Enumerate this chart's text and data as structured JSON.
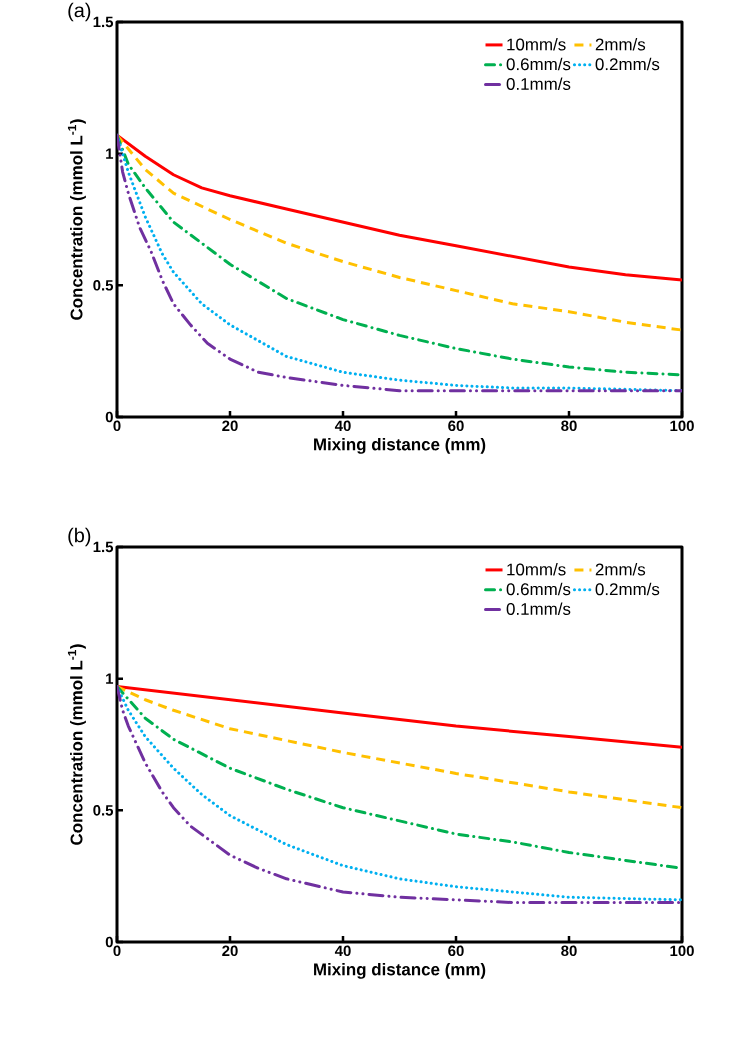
{
  "chart_data": [
    {
      "type": "line",
      "title": "(a)",
      "xlabel": "Mixing distance (mm)",
      "ylabel": "Concentration (mmol L$^{-1}$)",
      "xlim": [
        0,
        100
      ],
      "ylim": [
        0,
        1.5
      ],
      "xticks": [
        0,
        20,
        40,
        60,
        80,
        100
      ],
      "yticks": [
        0,
        0.5,
        1,
        1.5
      ],
      "grid": false,
      "legend": "top right",
      "marker": "none",
      "series": [
        {
          "name": "10mm/s",
          "color": "#ff0000",
          "line_style": "solid",
          "x": [
            0,
            5,
            10,
            15,
            20,
            30,
            40,
            50,
            60,
            70,
            80,
            90,
            100
          ],
          "values": [
            1.07,
            0.99,
            0.92,
            0.87,
            0.84,
            0.79,
            0.74,
            0.69,
            0.65,
            0.61,
            0.57,
            0.54,
            0.52
          ]
        },
        {
          "name": "2mm/s",
          "color": "#ffc000",
          "line_style": "dashed",
          "x": [
            0,
            5,
            10,
            20,
            30,
            40,
            50,
            60,
            70,
            80,
            90,
            100
          ],
          "values": [
            1.07,
            0.94,
            0.85,
            0.75,
            0.66,
            0.59,
            0.53,
            0.48,
            0.43,
            0.4,
            0.36,
            0.33
          ]
        },
        {
          "name": "0.6mm/s",
          "color": "#00b050",
          "line_style": "dashdot",
          "x": [
            0,
            2,
            5,
            10,
            20,
            30,
            40,
            50,
            60,
            70,
            80,
            90,
            100
          ],
          "values": [
            1.07,
            0.96,
            0.87,
            0.74,
            0.58,
            0.45,
            0.37,
            0.31,
            0.26,
            0.22,
            0.19,
            0.17,
            0.16
          ]
        },
        {
          "name": "0.2mm/s",
          "color": "#00b0f0",
          "line_style": "dotted",
          "x": [
            0,
            2,
            5,
            8,
            10,
            15,
            20,
            30,
            40,
            50,
            60,
            70,
            80,
            100
          ],
          "values": [
            1.07,
            0.93,
            0.76,
            0.62,
            0.55,
            0.43,
            0.35,
            0.23,
            0.17,
            0.14,
            0.12,
            0.11,
            0.11,
            0.1
          ]
        },
        {
          "name": "0.1mm/s",
          "color": "#7030a0",
          "line_style": "dashdotdot",
          "x": [
            0,
            1,
            2,
            4,
            6,
            8,
            10,
            13,
            16,
            20,
            25,
            30,
            40,
            50,
            60,
            80,
            100
          ],
          "values": [
            1.07,
            0.93,
            0.85,
            0.72,
            0.63,
            0.52,
            0.43,
            0.35,
            0.28,
            0.22,
            0.17,
            0.15,
            0.12,
            0.1,
            0.1,
            0.1,
            0.1
          ]
        }
      ]
    },
    {
      "type": "line",
      "title": "(b)",
      "xlabel": "Mixing distance (mm)",
      "ylabel": "Concentration (mmol L$^{-1}$)",
      "xlim": [
        0,
        100
      ],
      "ylim": [
        0,
        1.5
      ],
      "xticks": [
        0,
        20,
        40,
        60,
        80,
        100
      ],
      "yticks": [
        0,
        0.5,
        1,
        1.5
      ],
      "grid": false,
      "legend": "top right",
      "marker": "none",
      "series": [
        {
          "name": "10mm/s",
          "color": "#ff0000",
          "line_style": "solid",
          "x": [
            0,
            20,
            40,
            60,
            80,
            100
          ],
          "values": [
            0.97,
            0.92,
            0.87,
            0.82,
            0.78,
            0.74
          ]
        },
        {
          "name": "2mm/s",
          "color": "#ffc000",
          "line_style": "dashed",
          "x": [
            0,
            5,
            10,
            20,
            40,
            60,
            80,
            100
          ],
          "values": [
            0.97,
            0.92,
            0.88,
            0.81,
            0.72,
            0.64,
            0.57,
            0.51
          ]
        },
        {
          "name": "0.6mm/s",
          "color": "#00b050",
          "line_style": "dashdot",
          "x": [
            0,
            5,
            10,
            20,
            30,
            40,
            50,
            60,
            70,
            80,
            90,
            100
          ],
          "values": [
            0.97,
            0.85,
            0.77,
            0.66,
            0.58,
            0.51,
            0.46,
            0.41,
            0.38,
            0.34,
            0.31,
            0.28
          ]
        },
        {
          "name": "0.2mm/s",
          "color": "#00b0f0",
          "line_style": "dotted",
          "x": [
            0,
            2,
            5,
            10,
            15,
            20,
            30,
            40,
            50,
            60,
            70,
            80,
            90,
            100
          ],
          "values": [
            0.97,
            0.88,
            0.78,
            0.66,
            0.56,
            0.48,
            0.37,
            0.29,
            0.24,
            0.21,
            0.19,
            0.17,
            0.165,
            0.16
          ]
        },
        {
          "name": "0.1mm/s",
          "color": "#7030a0",
          "line_style": "dashdotdot",
          "x": [
            0,
            1,
            2,
            5,
            8,
            10,
            13,
            20,
            25,
            30,
            40,
            50,
            60,
            70,
            100
          ],
          "values": [
            0.97,
            0.88,
            0.82,
            0.68,
            0.57,
            0.51,
            0.44,
            0.33,
            0.28,
            0.24,
            0.19,
            0.17,
            0.16,
            0.15,
            0.15
          ]
        }
      ]
    }
  ]
}
